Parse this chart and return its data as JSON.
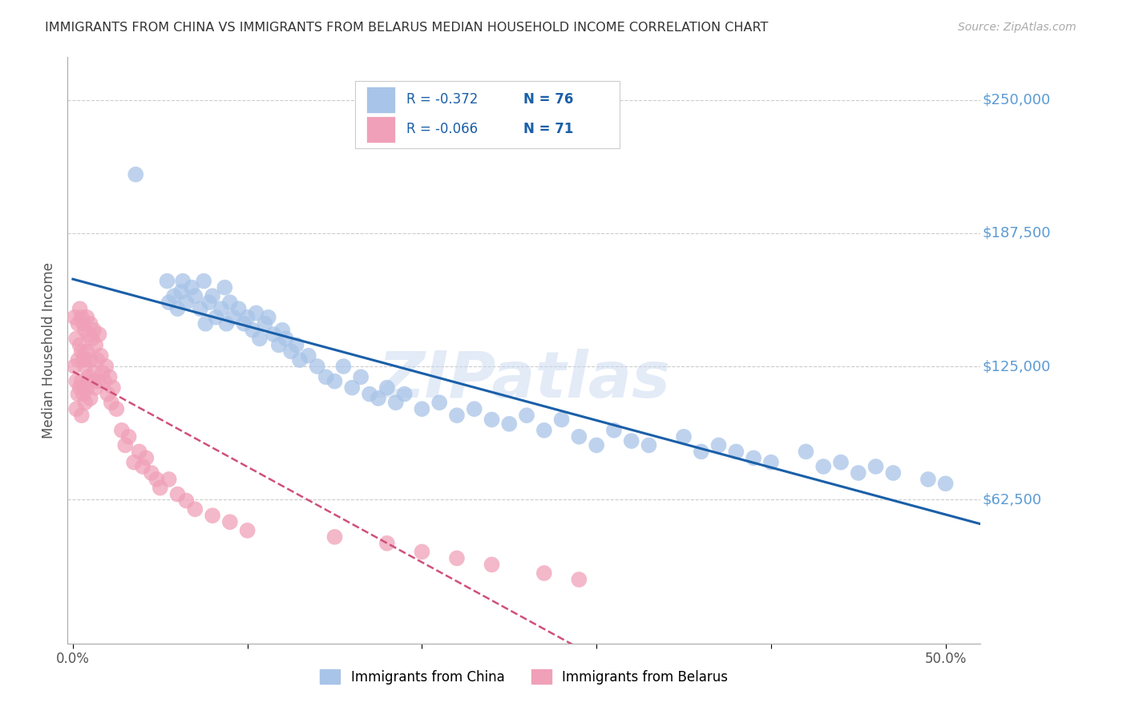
{
  "title": "IMMIGRANTS FROM CHINA VS IMMIGRANTS FROM BELARUS MEDIAN HOUSEHOLD INCOME CORRELATION CHART",
  "source": "Source: ZipAtlas.com",
  "ylabel": "Median Household Income",
  "china_R": "-0.372",
  "china_N": "76",
  "belarus_R": "-0.066",
  "belarus_N": "71",
  "china_color": "#a8c4e8",
  "belarus_color": "#f0a0b8",
  "china_line_color": "#1a5fa8",
  "belarus_line_color": "#d0507a",
  "r_value_color": "#1a5fa8",
  "watermark": "ZIPatlas",
  "background_color": "#ffffff",
  "grid_color": "#cccccc",
  "ytick_label_color": "#5b9bd5",
  "legend_border_color": "#cccccc",
  "ylim": [
    -5000,
    270000
  ],
  "xlim": [
    -0.003,
    0.52
  ],
  "china_x": [
    0.036,
    0.054,
    0.055,
    0.058,
    0.06,
    0.062,
    0.063,
    0.065,
    0.068,
    0.07,
    0.073,
    0.075,
    0.076,
    0.078,
    0.08,
    0.082,
    0.085,
    0.087,
    0.088,
    0.09,
    0.092,
    0.095,
    0.098,
    0.1,
    0.103,
    0.105,
    0.107,
    0.11,
    0.112,
    0.115,
    0.118,
    0.12,
    0.122,
    0.125,
    0.128,
    0.13,
    0.135,
    0.14,
    0.145,
    0.15,
    0.155,
    0.16,
    0.165,
    0.17,
    0.175,
    0.18,
    0.185,
    0.19,
    0.2,
    0.21,
    0.22,
    0.23,
    0.24,
    0.25,
    0.26,
    0.27,
    0.28,
    0.29,
    0.3,
    0.31,
    0.32,
    0.33,
    0.35,
    0.36,
    0.37,
    0.38,
    0.39,
    0.4,
    0.42,
    0.43,
    0.44,
    0.45,
    0.46,
    0.47,
    0.49,
    0.5
  ],
  "china_y": [
    215000,
    165000,
    155000,
    158000,
    152000,
    160000,
    165000,
    155000,
    162000,
    158000,
    152000,
    165000,
    145000,
    155000,
    158000,
    148000,
    152000,
    162000,
    145000,
    155000,
    148000,
    152000,
    145000,
    148000,
    142000,
    150000,
    138000,
    145000,
    148000,
    140000,
    135000,
    142000,
    138000,
    132000,
    135000,
    128000,
    130000,
    125000,
    120000,
    118000,
    125000,
    115000,
    120000,
    112000,
    110000,
    115000,
    108000,
    112000,
    105000,
    108000,
    102000,
    105000,
    100000,
    98000,
    102000,
    95000,
    100000,
    92000,
    88000,
    95000,
    90000,
    88000,
    92000,
    85000,
    88000,
    85000,
    82000,
    80000,
    85000,
    78000,
    80000,
    75000,
    78000,
    75000,
    72000,
    70000
  ],
  "belarus_x": [
    0.001,
    0.001,
    0.002,
    0.002,
    0.002,
    0.003,
    0.003,
    0.003,
    0.004,
    0.004,
    0.004,
    0.005,
    0.005,
    0.005,
    0.005,
    0.006,
    0.006,
    0.006,
    0.007,
    0.007,
    0.007,
    0.008,
    0.008,
    0.008,
    0.009,
    0.009,
    0.01,
    0.01,
    0.01,
    0.011,
    0.011,
    0.012,
    0.012,
    0.013,
    0.013,
    0.014,
    0.015,
    0.015,
    0.016,
    0.017,
    0.018,
    0.019,
    0.02,
    0.021,
    0.022,
    0.023,
    0.025,
    0.028,
    0.03,
    0.032,
    0.035,
    0.038,
    0.04,
    0.042,
    0.045,
    0.048,
    0.05,
    0.055,
    0.06,
    0.065,
    0.07,
    0.08,
    0.09,
    0.1,
    0.15,
    0.18,
    0.2,
    0.22,
    0.24,
    0.27,
    0.29
  ],
  "belarus_y": [
    148000,
    125000,
    138000,
    118000,
    105000,
    145000,
    128000,
    112000,
    152000,
    135000,
    115000,
    148000,
    132000,
    118000,
    102000,
    145000,
    128000,
    112000,
    142000,
    125000,
    108000,
    148000,
    132000,
    115000,
    140000,
    120000,
    145000,
    128000,
    110000,
    138000,
    118000,
    142000,
    122000,
    135000,
    115000,
    128000,
    140000,
    118000,
    130000,
    122000,
    118000,
    125000,
    112000,
    120000,
    108000,
    115000,
    105000,
    95000,
    88000,
    92000,
    80000,
    85000,
    78000,
    82000,
    75000,
    72000,
    68000,
    72000,
    65000,
    62000,
    58000,
    55000,
    52000,
    48000,
    45000,
    42000,
    38000,
    35000,
    32000,
    28000,
    25000
  ]
}
